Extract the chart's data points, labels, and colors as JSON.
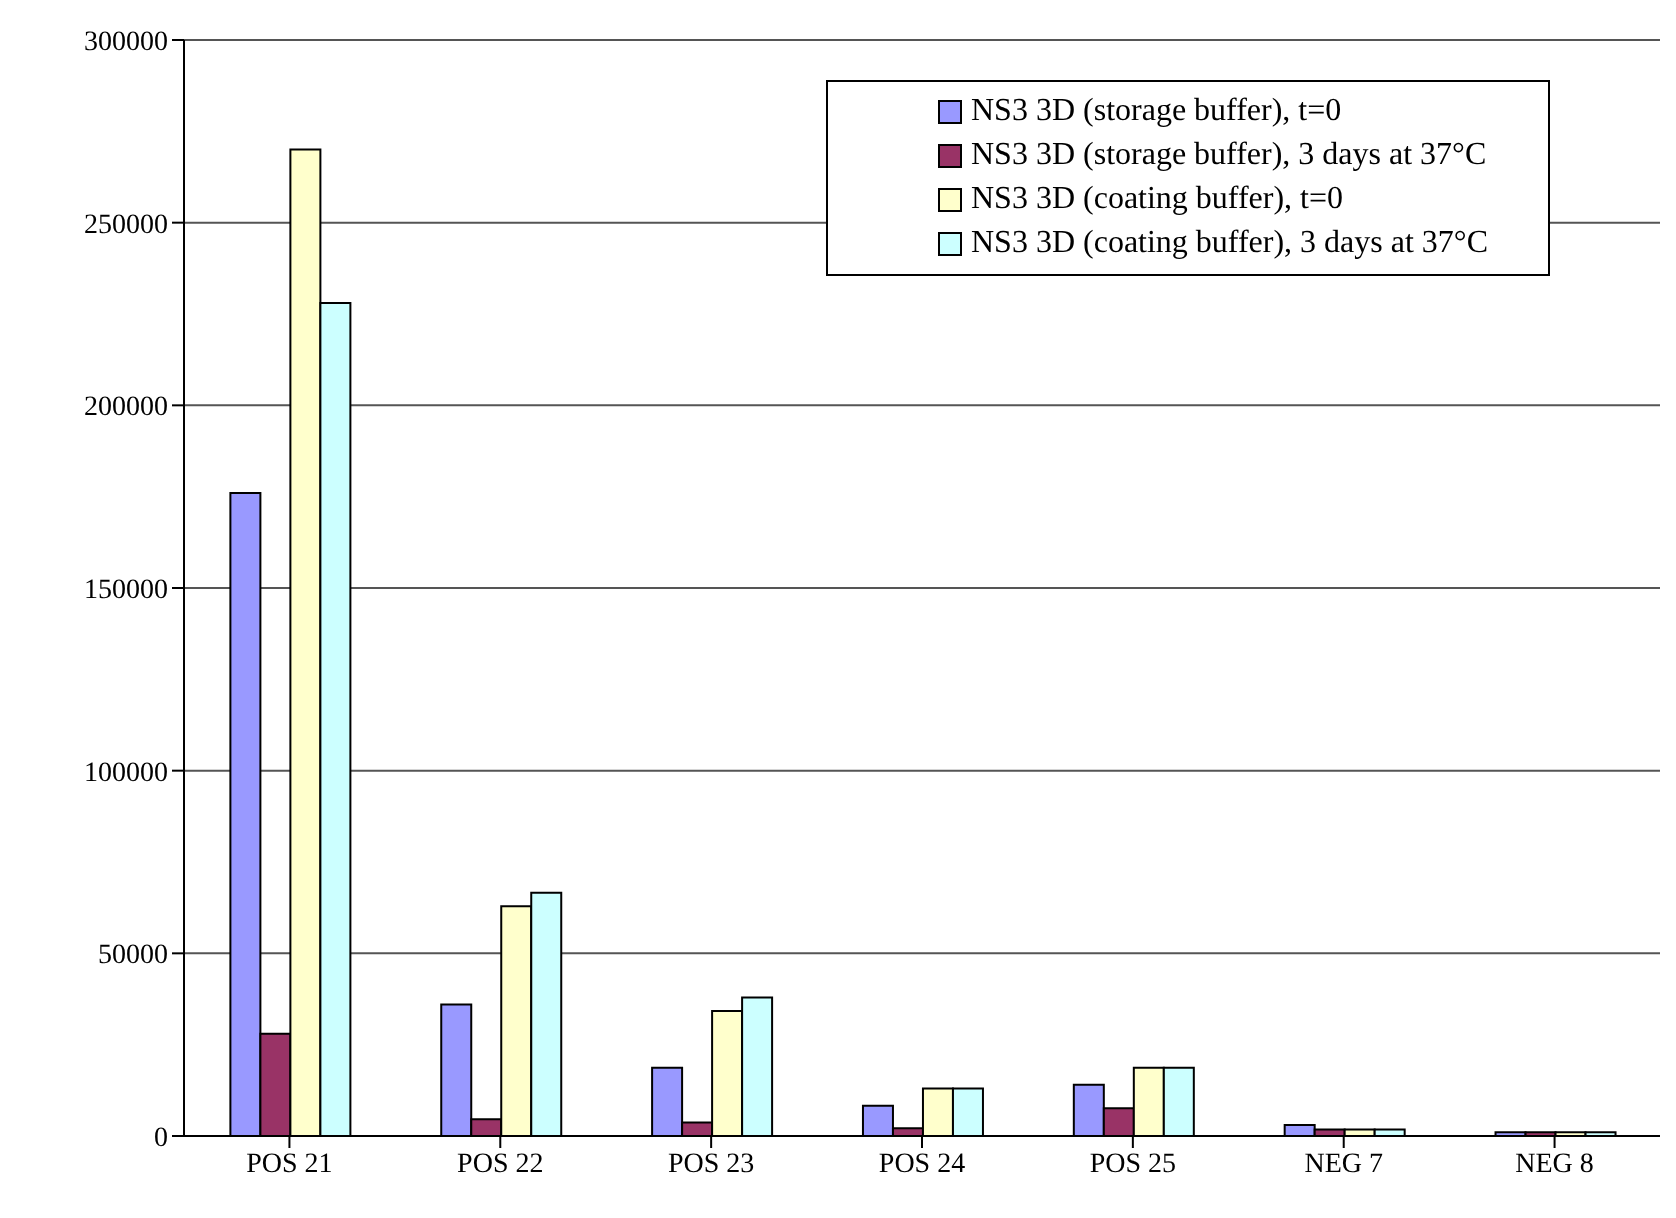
{
  "chart_data": {
    "type": "bar",
    "categories": [
      "POS 21",
      "POS 22",
      "POS 23",
      "POS 24",
      "POS 25",
      "NEG 7",
      "NEG 8"
    ],
    "series": [
      {
        "name": "NS3 3D (storage buffer), t=0",
        "color": "#9999ff",
        "values": [
          176000,
          36000,
          18700,
          8300,
          14000,
          3000,
          1000
        ]
      },
      {
        "name": "NS3 3D (storage buffer), 3 days at 37°C",
        "color": "#993366",
        "values": [
          28000,
          4600,
          3700,
          2100,
          7600,
          1800,
          1000
        ]
      },
      {
        "name": "NS3 3D (coating buffer), t=0",
        "color": "#ffffcc",
        "values": [
          270000,
          62900,
          34200,
          13000,
          18700,
          1800,
          1000
        ]
      },
      {
        "name": "NS3 3D (coating buffer), 3 days at 37°C",
        "color": "#ccffff",
        "values": [
          228000,
          66600,
          37900,
          13000,
          18700,
          1800,
          1000
        ]
      }
    ],
    "ylim": [
      0,
      300000
    ],
    "yticks": [
      0,
      50000,
      100000,
      150000,
      200000,
      250000,
      300000
    ],
    "grid": "y",
    "legend": "top right"
  }
}
